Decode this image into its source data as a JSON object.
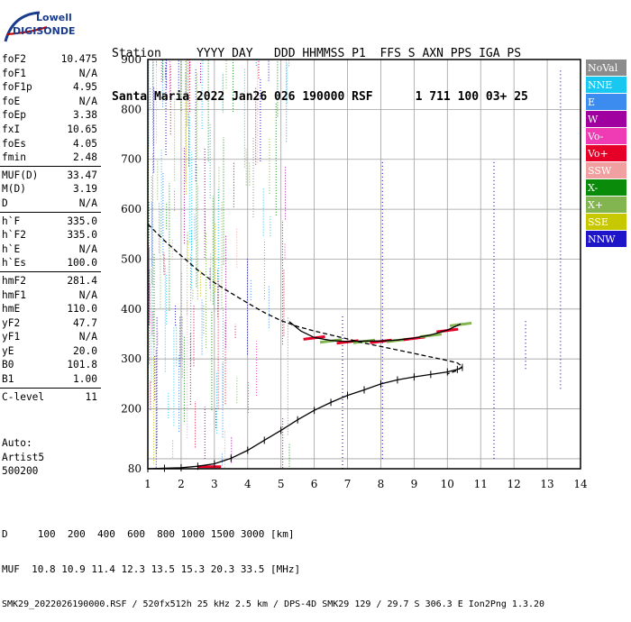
{
  "logo": {
    "line1": "Lowell",
    "line2": "DIGISONDE"
  },
  "header": {
    "labels": [
      "Station",
      "YYYY",
      "DAY",
      "DDD",
      "HHMMSS",
      "P1",
      "FFS",
      "S",
      "AXN",
      "PPS",
      "IGA",
      "PS"
    ],
    "station": "Santa Maria",
    "year": "2022",
    "day": "Jan26",
    "doy": "026",
    "time": "190000",
    "p1": "RSF",
    "s": "1",
    "axn": "711",
    "pps": "100",
    "iga": "03+",
    "ps": "25"
  },
  "params": {
    "g1": [
      [
        "foF2",
        "10.475"
      ],
      [
        "foF1",
        "N/A"
      ],
      [
        "foF1p",
        "4.95"
      ],
      [
        "foE",
        "N/A"
      ],
      [
        "foEp",
        "3.38"
      ],
      [
        "fxI",
        "10.65"
      ],
      [
        "foEs",
        "4.05"
      ],
      [
        "fmin",
        "2.48"
      ]
    ],
    "g2": [
      [
        "MUF(D)",
        "33.47"
      ],
      [
        "M(D)",
        "3.19"
      ],
      [
        "D",
        "N/A"
      ]
    ],
    "g3": [
      [
        "h`F",
        "335.0"
      ],
      [
        "h`F2",
        "335.0"
      ],
      [
        "h`E",
        "N/A"
      ],
      [
        "h`Es",
        "100.0"
      ]
    ],
    "g4": [
      [
        "hmF2",
        "281.4"
      ],
      [
        "hmF1",
        "N/A"
      ],
      [
        "hmE",
        "110.0"
      ],
      [
        "yF2",
        "47.7"
      ],
      [
        "yF1",
        "N/A"
      ],
      [
        "yE",
        "20.0"
      ],
      [
        "B0",
        "101.8"
      ],
      [
        "B1",
        "1.00"
      ]
    ],
    "g5": [
      [
        "C-level",
        "11"
      ]
    ]
  },
  "auto": {
    "line1": "Auto:",
    "line2": "Artist5",
    "line3": "500200"
  },
  "legend": [
    {
      "label": "NoVal",
      "color": "#8c8c8c"
    },
    {
      "label": "NNE",
      "color": "#19c8f0"
    },
    {
      "label": "E",
      "color": "#3c8cf0"
    },
    {
      "label": "W",
      "color": "#a000a0"
    },
    {
      "label": "Vo-",
      "color": "#f03cb4"
    },
    {
      "label": "Vo+",
      "color": "#e60028"
    },
    {
      "label": "SSW",
      "color": "#f0a0a0"
    },
    {
      "label": "X-",
      "color": "#0a8c0a"
    },
    {
      "label": "X+",
      "color": "#82b450"
    },
    {
      "label": "SSE",
      "color": "#c8c800"
    },
    {
      "label": "NNW",
      "color": "#1e14c8"
    }
  ],
  "footer": {
    "line1": "D     100  200  400  600  800 1000 1500 3000 [km]",
    "line2": "MUF  10.8 10.9 11.4 12.3 13.5 15.3 20.3 33.5 [MHz]",
    "line3": "SMK29_2022026190000.RSF / 520fx512h 25 kHz 2.5 km / DPS-4D SMK29 129 / 29.7 S 306.3 E Ion2Png 1.3.20"
  },
  "chart_data": {
    "type": "scatter",
    "xlim": [
      1,
      14
    ],
    "ylim": [
      80,
      900
    ],
    "x_ticks": [
      1,
      2,
      3,
      4,
      5,
      6,
      7,
      8,
      9,
      10,
      11,
      12,
      13,
      14
    ],
    "y_ticks": [
      80,
      100,
      200,
      300,
      400,
      500,
      600,
      700,
      800,
      900
    ],
    "grid": true,
    "series": [
      {
        "type": "line",
        "style": "solid",
        "x": [
          1.0,
          1.5,
          2.0,
          2.5,
          3.0,
          3.5,
          4.0,
          4.5,
          5.0,
          5.5,
          6.0,
          6.5,
          7.0,
          7.5,
          8.0,
          8.5,
          9.0,
          9.5,
          10.0,
          10.3,
          10.45
        ],
        "y": [
          80,
          81,
          82,
          85,
          90,
          101,
          117,
          137,
          157,
          178,
          197,
          213,
          227,
          238,
          250,
          258,
          264,
          269,
          274,
          279,
          283
        ]
      },
      {
        "type": "line",
        "style": "dashed",
        "x": [
          1.0,
          1.5,
          2.0,
          2.5,
          3.0,
          3.5,
          4.0,
          4.5,
          5.0,
          5.5,
          6.0,
          6.5,
          7.0,
          7.5,
          8.0,
          8.5,
          9.0,
          9.5,
          10.0,
          10.3,
          10.45,
          10.3,
          10.0
        ],
        "y": [
          570,
          537,
          507,
          478,
          453,
          432,
          412,
          393,
          377,
          365,
          356,
          348,
          340,
          332,
          325,
          318,
          311,
          304,
          297,
          292,
          285,
          277,
          270
        ]
      },
      {
        "type": "line",
        "style": "solid",
        "x": [
          5.25,
          5.6,
          6.0,
          6.5,
          7.0,
          7.5,
          8.0,
          8.5,
          9.0,
          9.5,
          10.0,
          10.4
        ],
        "y": [
          375,
          356,
          343,
          337,
          335,
          336,
          336,
          338,
          342,
          348,
          358,
          370
        ]
      }
    ]
  }
}
